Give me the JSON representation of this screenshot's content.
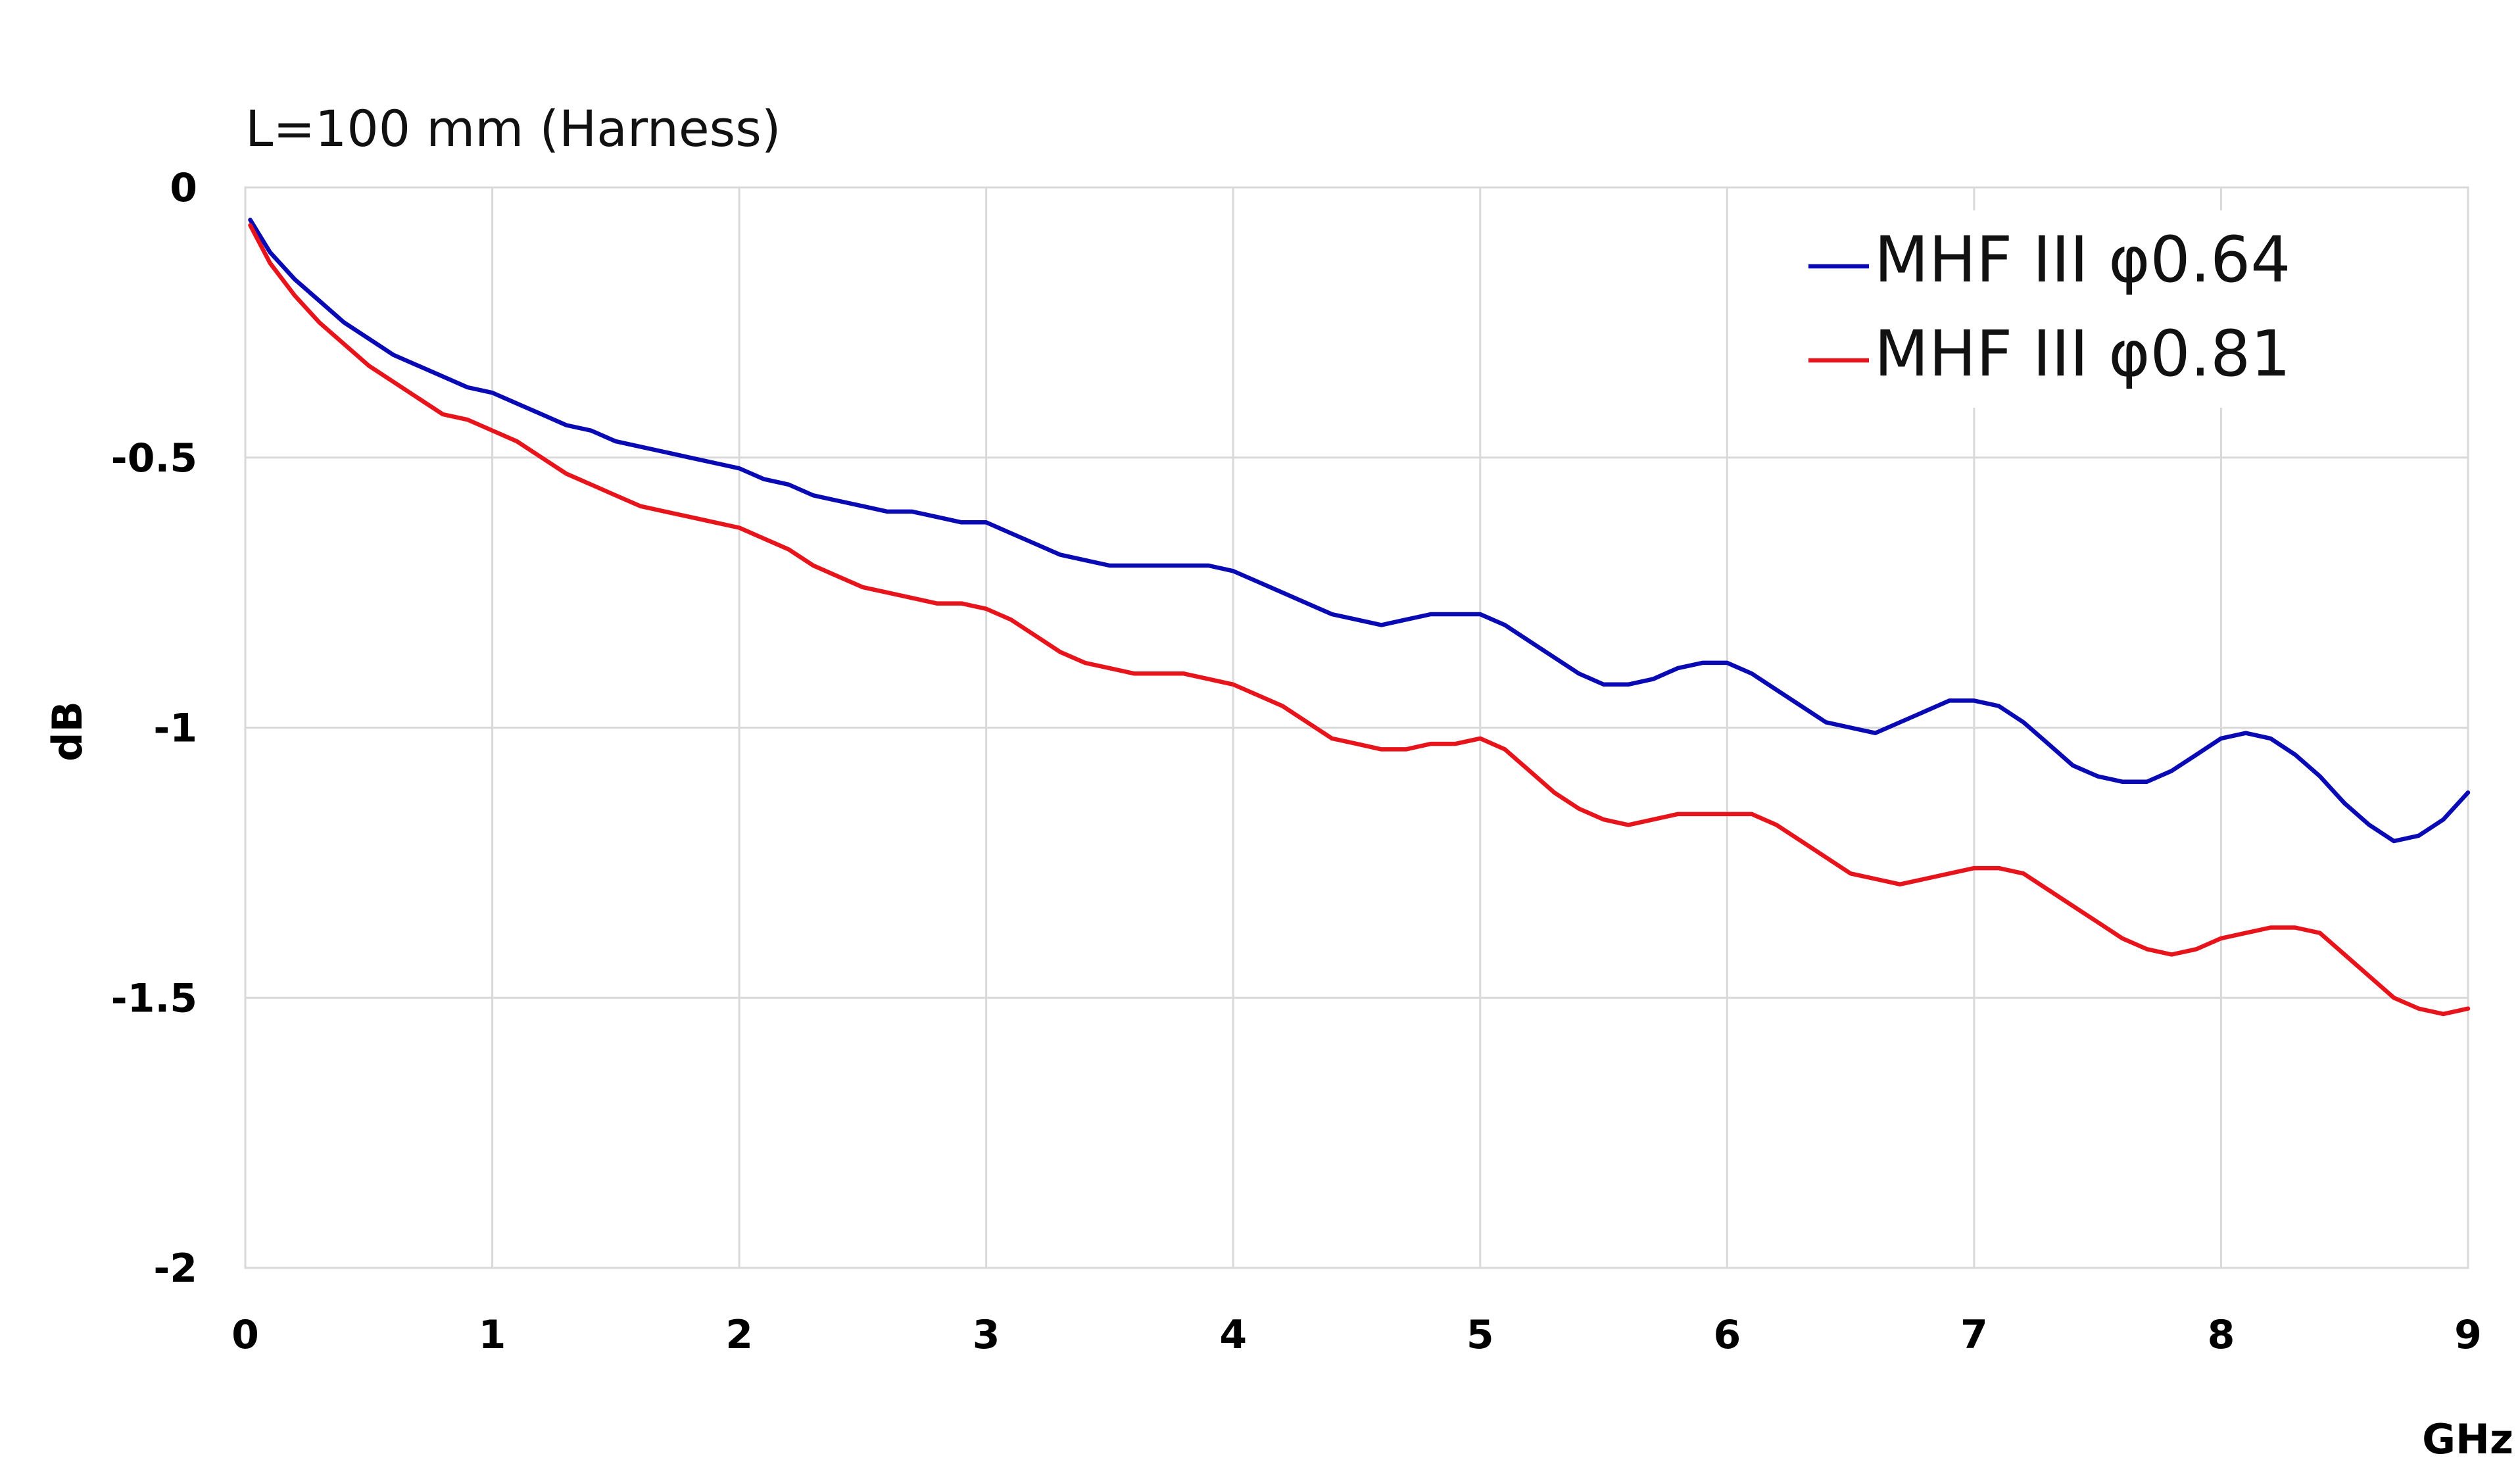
{
  "chart_data": {
    "type": "line",
    "title": "L=100 mm (Harness)",
    "xlabel": "GHz",
    "ylabel": "dB",
    "xlim": [
      0,
      9
    ],
    "ylim": [
      -2,
      0
    ],
    "x_ticks": [
      0,
      1,
      2,
      3,
      4,
      5,
      6,
      7,
      8,
      9
    ],
    "x_tick_labels": [
      "0",
      "1",
      "2",
      "3",
      "4",
      "5",
      "6",
      "7",
      "8",
      "9"
    ],
    "y_ticks": [
      0,
      -0.5,
      -1,
      -1.5,
      -2
    ],
    "y_tick_labels": [
      "0",
      "-0.5",
      "-1",
      "-1.5",
      "-2"
    ],
    "grid": true,
    "legend_position": "top-right",
    "series": [
      {
        "name": "MHF III φ0.64",
        "color": "#0a0ab4",
        "x": [
          0.02,
          0.1,
          0.2,
          0.3,
          0.4,
          0.5,
          0.6,
          0.7,
          0.8,
          0.9,
          1.0,
          1.1,
          1.2,
          1.3,
          1.4,
          1.5,
          1.6,
          1.7,
          1.8,
          1.9,
          2.0,
          2.1,
          2.2,
          2.3,
          2.4,
          2.5,
          2.6,
          2.7,
          2.8,
          2.9,
          3.0,
          3.1,
          3.2,
          3.3,
          3.4,
          3.5,
          3.6,
          3.7,
          3.8,
          3.9,
          4.0,
          4.1,
          4.2,
          4.3,
          4.4,
          4.5,
          4.6,
          4.7,
          4.8,
          4.9,
          5.0,
          5.1,
          5.2,
          5.3,
          5.4,
          5.5,
          5.6,
          5.7,
          5.8,
          5.9,
          6.0,
          6.1,
          6.2,
          6.3,
          6.4,
          6.5,
          6.6,
          6.7,
          6.8,
          6.9,
          7.0,
          7.1,
          7.2,
          7.3,
          7.4,
          7.5,
          7.6,
          7.7,
          7.8,
          7.9,
          8.0,
          8.1,
          8.2,
          8.3,
          8.4,
          8.5,
          8.6,
          8.7,
          8.8,
          8.9,
          9.0
        ],
        "values": [
          -0.06,
          -0.12,
          -0.17,
          -0.21,
          -0.25,
          -0.28,
          -0.31,
          -0.33,
          -0.35,
          -0.37,
          -0.38,
          -0.4,
          -0.42,
          -0.44,
          -0.45,
          -0.47,
          -0.48,
          -0.49,
          -0.5,
          -0.51,
          -0.52,
          -0.54,
          -0.55,
          -0.57,
          -0.58,
          -0.59,
          -0.6,
          -0.6,
          -0.61,
          -0.62,
          -0.62,
          -0.64,
          -0.66,
          -0.68,
          -0.69,
          -0.7,
          -0.7,
          -0.7,
          -0.7,
          -0.7,
          -0.71,
          -0.73,
          -0.75,
          -0.77,
          -0.79,
          -0.8,
          -0.81,
          -0.8,
          -0.79,
          -0.79,
          -0.79,
          -0.81,
          -0.84,
          -0.87,
          -0.9,
          -0.92,
          -0.92,
          -0.91,
          -0.89,
          -0.88,
          -0.88,
          -0.9,
          -0.93,
          -0.96,
          -0.99,
          -1.0,
          -1.01,
          -0.99,
          -0.97,
          -0.95,
          -0.95,
          -0.96,
          -0.99,
          -1.03,
          -1.07,
          -1.09,
          -1.1,
          -1.1,
          -1.08,
          -1.05,
          -1.02,
          -1.01,
          -1.02,
          -1.05,
          -1.09,
          -1.14,
          -1.18,
          -1.21,
          -1.2,
          -1.17,
          -1.12
        ]
      },
      {
        "name": "MHF III φ0.81",
        "color": "#e8141c",
        "x": [
          0.02,
          0.1,
          0.2,
          0.3,
          0.4,
          0.5,
          0.6,
          0.7,
          0.8,
          0.9,
          1.0,
          1.1,
          1.2,
          1.3,
          1.4,
          1.5,
          1.6,
          1.7,
          1.8,
          1.9,
          2.0,
          2.1,
          2.2,
          2.3,
          2.4,
          2.5,
          2.6,
          2.7,
          2.8,
          2.9,
          3.0,
          3.1,
          3.2,
          3.3,
          3.4,
          3.5,
          3.6,
          3.7,
          3.8,
          3.9,
          4.0,
          4.1,
          4.2,
          4.3,
          4.4,
          4.5,
          4.6,
          4.7,
          4.8,
          4.9,
          5.0,
          5.1,
          5.2,
          5.3,
          5.4,
          5.5,
          5.6,
          5.7,
          5.8,
          5.9,
          6.0,
          6.1,
          6.2,
          6.3,
          6.4,
          6.5,
          6.6,
          6.7,
          6.8,
          6.9,
          7.0,
          7.1,
          7.2,
          7.3,
          7.4,
          7.5,
          7.6,
          7.7,
          7.8,
          7.9,
          8.0,
          8.1,
          8.2,
          8.3,
          8.4,
          8.5,
          8.6,
          8.7,
          8.8,
          8.9,
          9.0
        ],
        "values": [
          -0.07,
          -0.14,
          -0.2,
          -0.25,
          -0.29,
          -0.33,
          -0.36,
          -0.39,
          -0.42,
          -0.43,
          -0.45,
          -0.47,
          -0.5,
          -0.53,
          -0.55,
          -0.57,
          -0.59,
          -0.6,
          -0.61,
          -0.62,
          -0.63,
          -0.65,
          -0.67,
          -0.7,
          -0.72,
          -0.74,
          -0.75,
          -0.76,
          -0.77,
          -0.77,
          -0.78,
          -0.8,
          -0.83,
          -0.86,
          -0.88,
          -0.89,
          -0.9,
          -0.9,
          -0.9,
          -0.91,
          -0.92,
          -0.94,
          -0.96,
          -0.99,
          -1.02,
          -1.03,
          -1.04,
          -1.04,
          -1.03,
          -1.03,
          -1.02,
          -1.04,
          -1.08,
          -1.12,
          -1.15,
          -1.17,
          -1.18,
          -1.17,
          -1.16,
          -1.16,
          -1.16,
          -1.16,
          -1.18,
          -1.21,
          -1.24,
          -1.27,
          -1.28,
          -1.29,
          -1.28,
          -1.27,
          -1.26,
          -1.26,
          -1.27,
          -1.3,
          -1.33,
          -1.36,
          -1.39,
          -1.41,
          -1.42,
          -1.41,
          -1.39,
          -1.38,
          -1.37,
          -1.37,
          -1.38,
          -1.42,
          -1.46,
          -1.5,
          -1.52,
          -1.53,
          -1.52
        ]
      }
    ]
  }
}
